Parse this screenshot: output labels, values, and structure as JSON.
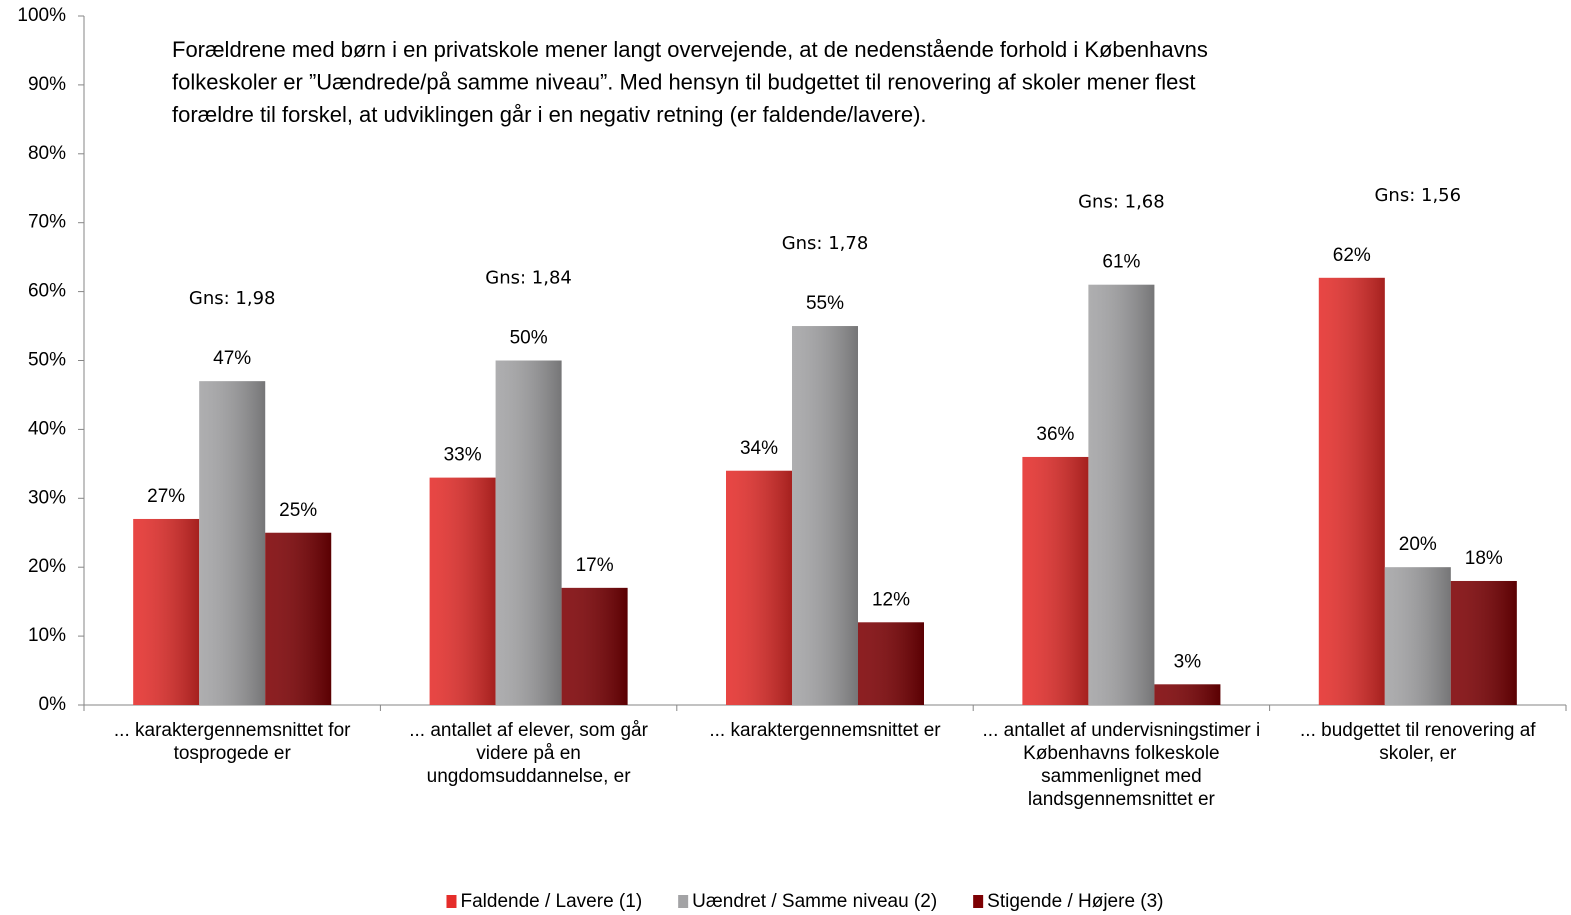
{
  "chart_data": {
    "type": "bar",
    "text_box": [
      "Forældrene med børn i en privatskole mener langt overvejende, at de nedenstående forhold i Københavns",
      "folkeskoler er ”Uændrede/på samme niveau”. Med hensyn til budgettet til renovering af skoler mener flest",
      "forældre til forskel, at udviklingen går i en negativ retning (er faldende/lavere)."
    ],
    "categories": [
      "... karaktergennemsnittet for tosprogede er",
      "... antallet af elever, som går videre på en ungdomsuddannelse, er",
      "... karaktergennemsnittet er",
      "... antallet af undervisningstimer i Københavns folkeskole sammenlignet med landsgennemsnittet er",
      "... budgettet til renovering af skoler, er"
    ],
    "annotations": [
      "Gns: 1,98",
      "Gns: 1,84",
      "Gns: 1,78",
      "Gns: 1,68",
      "Gns: 1,56"
    ],
    "series": [
      {
        "name": "Faldende / Lavere (1)",
        "color": "#e52d2a",
        "values": [
          27,
          33,
          34,
          36,
          62
        ],
        "value_labels": [
          "27%",
          "33%",
          "34%",
          "36%",
          "62%"
        ]
      },
      {
        "name": "Uændret / Samme niveau (2)",
        "color": "#a3a3a5",
        "values": [
          47,
          50,
          55,
          61,
          20
        ],
        "value_labels": [
          "47%",
          "50%",
          "55%",
          "61%",
          "20%"
        ]
      },
      {
        "name": "Stigende / Højere (3)",
        "color": "#7d0003",
        "values": [
          25,
          17,
          12,
          3,
          18
        ],
        "value_labels": [
          "25%",
          "17%",
          "12%",
          "3%",
          "18%"
        ]
      }
    ],
    "ylim": [
      0,
      100
    ],
    "yticks": [
      {
        "value": 0,
        "label": "0%"
      },
      {
        "value": 10,
        "label": "10%"
      },
      {
        "value": 20,
        "label": "20%"
      },
      {
        "value": 30,
        "label": "30%"
      },
      {
        "value": 40,
        "label": "40%"
      },
      {
        "value": 50,
        "label": "50%"
      },
      {
        "value": 60,
        "label": "60%"
      },
      {
        "value": 70,
        "label": "70%"
      },
      {
        "value": 80,
        "label": "80%"
      },
      {
        "value": 90,
        "label": "90%"
      },
      {
        "value": 100,
        "label": "100%"
      }
    ],
    "legend": "bottom"
  }
}
